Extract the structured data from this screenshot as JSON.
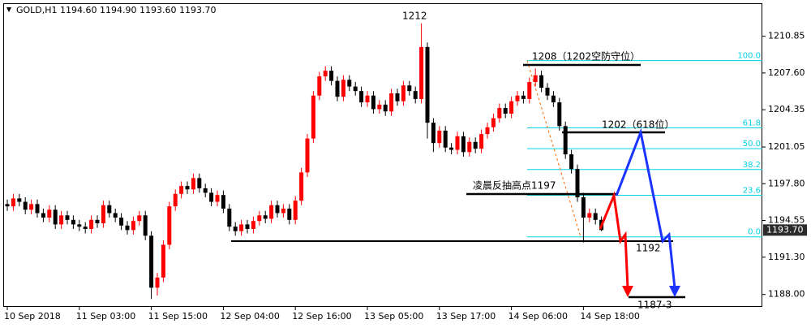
{
  "chart_data": {
    "type": "candlestick",
    "title": "GOLD,H1  1194.60 1194.90 1193.60 1193.70",
    "categories": [
      "10 Sep 2018",
      null,
      null,
      null,
      null,
      null,
      null,
      null,
      null,
      null,
      null,
      null,
      "11 Sep 03:00",
      null,
      null,
      null,
      null,
      null,
      null,
      null,
      null,
      null,
      null,
      null,
      "11 Sep 15:00",
      null,
      null,
      null,
      null,
      null,
      null,
      null,
      null,
      null,
      null,
      null,
      "12 Sep 04:00",
      null,
      null,
      null,
      null,
      null,
      null,
      null,
      null,
      null,
      null,
      null,
      "12 Sep 16:00",
      null,
      null,
      null,
      null,
      null,
      null,
      null,
      null,
      null,
      null,
      null,
      "13 Sep 05:00",
      null,
      null,
      null,
      null,
      null,
      null,
      null,
      null,
      null,
      null,
      null,
      "13 Sep 17:00",
      null,
      null,
      null,
      null,
      null,
      null,
      null,
      null,
      null,
      null,
      null,
      "14 Sep 06:00",
      null,
      null,
      null,
      null,
      null,
      null,
      null,
      null,
      null,
      null,
      null,
      "14 Sep 18:00",
      null,
      null,
      null
    ],
    "open": [
      1196.0,
      1195.8,
      1196.5,
      1196.2,
      1195.5,
      1196.0,
      1195.2,
      1194.8,
      1195.5,
      1194.2,
      1195.0,
      1194.6,
      1194.2,
      1194.0,
      1193.8,
      1194.6,
      1194.3,
      1195.9,
      1195.2,
      1194.8,
      1194.1,
      1193.7,
      1194.5,
      1195.0,
      1193.2,
      1188.6,
      1189.5,
      1192.4,
      1195.8,
      1196.9,
      1197.6,
      1197.3,
      1198.3,
      1197.4,
      1197.0,
      1196.2,
      1196.8,
      1195.6,
      1194.0,
      1193.6,
      1194.2,
      1193.8,
      1194.5,
      1195.0,
      1194.7,
      1195.9,
      1195.2,
      1195.6,
      1194.6,
      1196.3,
      1198.8,
      1201.8,
      1205.6,
      1207.3,
      1207.8,
      1206.9,
      1205.5,
      1207.0,
      1206.4,
      1206.0,
      1205.0,
      1205.6,
      1204.4,
      1204.8,
      1204.2,
      1205.8,
      1205.1,
      1206.5,
      1206.0,
      1205.3,
      1209.9,
      1203.2,
      1201.4,
      1202.5,
      1201.0,
      1200.8,
      1202.0,
      1200.6,
      1201.5,
      1200.9,
      1202.2,
      1202.8,
      1203.6,
      1204.5,
      1204.0,
      1205.1,
      1205.6,
      1205.3,
      1206.8,
      1207.4,
      1206.3,
      1205.6,
      1205.0,
      1202.9,
      1200.4,
      1199.1,
      1196.6,
      1194.8,
      1195.2,
      1194.6
    ],
    "high": [
      1196.4,
      1196.9,
      1196.9,
      1196.6,
      1196.4,
      1196.4,
      1195.6,
      1195.9,
      1195.9,
      1195.4,
      1195.4,
      1195.0,
      1194.6,
      1194.4,
      1195.0,
      1195.0,
      1196.3,
      1196.3,
      1195.6,
      1195.2,
      1194.5,
      1194.9,
      1195.4,
      1195.4,
      1193.6,
      1189.9,
      1192.8,
      1196.2,
      1197.3,
      1198.0,
      1198.0,
      1198.7,
      1198.7,
      1197.8,
      1197.4,
      1197.2,
      1197.2,
      1196.0,
      1194.4,
      1194.6,
      1194.6,
      1194.9,
      1195.4,
      1195.4,
      1196.3,
      1196.3,
      1196.0,
      1196.0,
      1196.7,
      1199.2,
      1202.2,
      1206.0,
      1207.7,
      1208.2,
      1208.2,
      1207.3,
      1207.4,
      1207.4,
      1206.8,
      1206.4,
      1206.0,
      1206.0,
      1205.2,
      1205.2,
      1206.2,
      1206.2,
      1206.9,
      1206.9,
      1206.4,
      1212.0,
      1210.3,
      1203.6,
      1202.9,
      1202.9,
      1201.4,
      1202.4,
      1202.4,
      1201.9,
      1201.9,
      1202.6,
      1203.2,
      1204.0,
      1204.9,
      1204.9,
      1205.5,
      1206.0,
      1206.0,
      1207.2,
      1208.0,
      1207.8,
      1206.7,
      1206.0,
      1205.4,
      1203.3,
      1200.8,
      1199.5,
      1197.0,
      1195.6,
      1195.6,
      1194.9
    ],
    "low": [
      1195.4,
      1195.4,
      1195.8,
      1195.1,
      1195.1,
      1194.8,
      1194.4,
      1194.4,
      1193.8,
      1193.8,
      1194.2,
      1193.8,
      1193.6,
      1193.4,
      1193.4,
      1193.9,
      1193.9,
      1194.8,
      1194.4,
      1193.7,
      1193.3,
      1193.3,
      1194.1,
      1192.8,
      1187.6,
      1187.9,
      1189.1,
      1192.0,
      1195.4,
      1196.5,
      1196.9,
      1196.9,
      1197.0,
      1196.6,
      1195.8,
      1195.8,
      1195.2,
      1193.6,
      1193.2,
      1193.2,
      1193.4,
      1193.4,
      1194.1,
      1194.3,
      1194.3,
      1194.8,
      1194.8,
      1194.2,
      1194.2,
      1195.9,
      1198.4,
      1201.4,
      1205.2,
      1206.9,
      1206.5,
      1205.1,
      1205.1,
      1206.0,
      1205.6,
      1204.6,
      1204.6,
      1204.0,
      1204.0,
      1203.8,
      1203.8,
      1204.7,
      1204.7,
      1205.6,
      1204.9,
      1204.9,
      1201.8,
      1200.6,
      1201.0,
      1200.6,
      1200.4,
      1200.4,
      1200.2,
      1200.2,
      1200.5,
      1200.5,
      1201.8,
      1202.4,
      1203.2,
      1203.6,
      1203.6,
      1204.7,
      1204.9,
      1204.9,
      1206.4,
      1205.9,
      1205.2,
      1204.6,
      1202.5,
      1200.0,
      1198.7,
      1196.2,
      1192.6,
      1194.4,
      1194.2,
      1193.6
    ],
    "close": [
      1195.8,
      1196.5,
      1196.2,
      1195.5,
      1196.0,
      1195.2,
      1194.8,
      1195.5,
      1194.2,
      1195.0,
      1194.6,
      1194.2,
      1194.0,
      1193.8,
      1194.6,
      1194.3,
      1195.9,
      1195.2,
      1194.8,
      1194.1,
      1193.7,
      1194.5,
      1195.0,
      1193.2,
      1188.6,
      1189.5,
      1192.4,
      1195.8,
      1196.9,
      1197.6,
      1197.3,
      1198.3,
      1197.4,
      1197.0,
      1196.2,
      1196.8,
      1195.6,
      1194.0,
      1193.6,
      1194.2,
      1193.8,
      1194.5,
      1195.0,
      1194.7,
      1195.9,
      1195.2,
      1195.6,
      1194.6,
      1196.3,
      1198.8,
      1201.8,
      1205.6,
      1207.3,
      1207.8,
      1206.9,
      1205.5,
      1207.0,
      1206.4,
      1206.0,
      1205.0,
      1205.6,
      1204.4,
      1204.8,
      1204.2,
      1205.8,
      1205.1,
      1206.5,
      1206.0,
      1205.3,
      1209.9,
      1203.2,
      1201.4,
      1202.5,
      1201.0,
      1200.8,
      1202.0,
      1200.6,
      1201.5,
      1200.9,
      1202.2,
      1202.8,
      1203.6,
      1204.5,
      1204.0,
      1205.1,
      1205.6,
      1205.3,
      1206.8,
      1207.4,
      1206.3,
      1205.6,
      1205.0,
      1202.9,
      1200.4,
      1199.1,
      1196.6,
      1194.8,
      1195.2,
      1194.6,
      1193.7
    ],
    "up_color": "#ff0000",
    "down_color": "#000000",
    "ylim": [
      1186.9,
      1213.7
    ],
    "yticks": [
      1210.85,
      {
        "value": 1207.6,
        "label": "1207.60"
      },
      1204.35,
      1201.05,
      {
        "value": 1197.8,
        "label": "1197.80"
      },
      1194.55,
      {
        "value": 1191.3,
        "label": "1191.30"
      },
      {
        "value": 1188.0,
        "label": "1188.00"
      }
    ],
    "last_price": {
      "value": 1193.7,
      "label": "1193.70"
    },
    "fib_range": [
      1193.1,
      1208.7
    ],
    "fib_levels": [
      {
        "value": 100,
        "label": "100.0"
      },
      {
        "value": 61.8,
        "label": "61.8"
      },
      {
        "value": 50,
        "label": "50.0"
      },
      {
        "value": 38.2,
        "label": "38.2"
      },
      {
        "value": 23.6,
        "label": "23.6"
      },
      {
        "value": 0,
        "label": "0.0"
      }
    ],
    "fib_color": "#00d2e6",
    "annotations": {
      "peak": "1212",
      "resistance": "1208（1202空防守位）",
      "fib_618": "1202（618位）",
      "rebound": "凌晨反抽高点1197",
      "support": "1192",
      "target": "1187-3"
    }
  }
}
